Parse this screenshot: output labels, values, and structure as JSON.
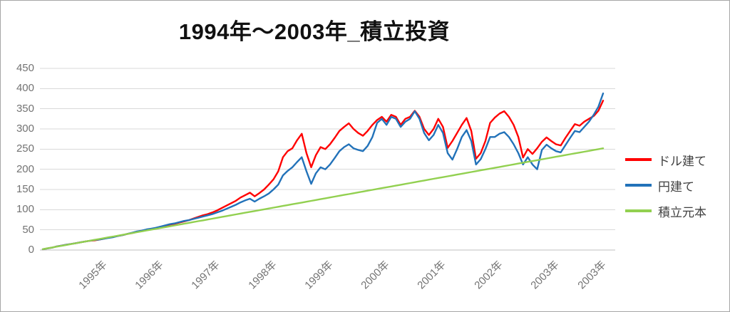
{
  "chart_data": {
    "type": "line",
    "title": "1994年～2003年_積立投資",
    "xlabel": "",
    "ylabel": "",
    "ylim": [
      0,
      450
    ],
    "y_ticks": [
      0,
      50,
      100,
      150,
      200,
      250,
      300,
      350,
      400,
      450
    ],
    "x_range": {
      "start": "1994-01",
      "end": "2003-12",
      "points": 120,
      "interval": "monthly"
    },
    "x_tick_labels": [
      "1995年",
      "1996年",
      "1997年",
      "1998年",
      "1999年",
      "2000年",
      "2001年",
      "2002年",
      "2003年",
      "2003年"
    ],
    "x_tick_months": [
      12,
      24,
      36,
      48,
      60,
      72,
      84,
      96,
      108,
      118
    ],
    "grid": true,
    "legend_position": "right",
    "colors": {
      "grid": "#d9d9d9",
      "axis": "#bfbfbf",
      "tick_text": "#737373",
      "legend_text": "#3f3f3f",
      "title_text": "#111111"
    },
    "series": [
      {
        "name": "ドル建て",
        "key": "usd",
        "color": "#ff0000",
        "values": [
          2,
          4,
          6,
          9,
          11,
          13,
          15,
          17,
          19,
          21,
          23,
          24,
          26,
          28,
          31,
          33,
          35,
          37,
          40,
          42,
          45,
          47,
          50,
          52,
          54,
          57,
          60,
          63,
          65,
          68,
          71,
          74,
          78,
          82,
          86,
          89,
          93,
          98,
          104,
          110,
          116,
          122,
          130,
          136,
          142,
          133,
          141,
          150,
          162,
          175,
          195,
          230,
          245,
          252,
          272,
          288,
          240,
          205,
          235,
          255,
          250,
          262,
          278,
          295,
          305,
          314,
          300,
          290,
          283,
          295,
          310,
          322,
          330,
          318,
          335,
          330,
          310,
          325,
          330,
          345,
          330,
          300,
          285,
          300,
          325,
          305,
          253,
          270,
          290,
          310,
          327,
          295,
          226,
          240,
          270,
          315,
          328,
          338,
          344,
          330,
          310,
          280,
          229,
          250,
          238,
          252,
          268,
          279,
          270,
          262,
          259,
          278,
          295,
          312,
          308,
          318,
          325,
          332,
          345,
          370
        ]
      },
      {
        "name": "円建て",
        "key": "jpy",
        "color": "#2272b9",
        "values": [
          2,
          4,
          6,
          9,
          11,
          13,
          15,
          17,
          19,
          21,
          23,
          25,
          26,
          28,
          30,
          32,
          35,
          37,
          40,
          43,
          46,
          48,
          51,
          53,
          55,
          58,
          61,
          64,
          66,
          69,
          72,
          74,
          77,
          80,
          83,
          86,
          89,
          93,
          97,
          102,
          107,
          112,
          118,
          123,
          127,
          120,
          127,
          133,
          140,
          150,
          162,
          185,
          196,
          205,
          218,
          230,
          195,
          164,
          190,
          205,
          200,
          212,
          228,
          245,
          255,
          262,
          252,
          248,
          245,
          258,
          280,
          315,
          325,
          310,
          330,
          325,
          305,
          318,
          325,
          344,
          325,
          290,
          272,
          285,
          310,
          290,
          240,
          224,
          250,
          280,
          297,
          270,
          212,
          225,
          250,
          280,
          280,
          288,
          292,
          280,
          262,
          240,
          212,
          230,
          212,
          200,
          248,
          261,
          252,
          245,
          242,
          260,
          278,
          295,
          292,
          305,
          318,
          335,
          355,
          388
        ]
      },
      {
        "name": "積立元本",
        "key": "principal",
        "color": "#92d050",
        "values": [
          2.1,
          4.2,
          6.3,
          8.4,
          10.5,
          12.6,
          14.7,
          16.8,
          18.9,
          21,
          23.1,
          25.2,
          27.3,
          29.4,
          31.5,
          33.6,
          35.7,
          37.8,
          39.9,
          42,
          44.1,
          46.2,
          48.3,
          50.4,
          52.5,
          54.6,
          56.7,
          58.8,
          60.9,
          63,
          65.1,
          67.2,
          69.3,
          71.4,
          73.5,
          75.6,
          77.7,
          79.8,
          81.9,
          84,
          86.1,
          88.2,
          90.3,
          92.4,
          94.5,
          96.6,
          98.7,
          100.8,
          102.9,
          105,
          107.1,
          109.2,
          111.3,
          113.4,
          115.5,
          117.6,
          119.7,
          121.8,
          123.9,
          126,
          128.1,
          130.2,
          132.3,
          134.4,
          136.5,
          138.6,
          140.7,
          142.8,
          144.9,
          147,
          149.1,
          151.2,
          153.3,
          155.4,
          157.5,
          159.6,
          161.7,
          163.8,
          165.9,
          168,
          170.1,
          172.2,
          174.3,
          176.4,
          178.5,
          180.6,
          182.7,
          184.8,
          186.9,
          189,
          191.1,
          193.2,
          195.3,
          197.4,
          199.5,
          201.6,
          203.7,
          205.8,
          207.9,
          210,
          212.1,
          214.2,
          216.3,
          218.4,
          220.5,
          222.6,
          224.7,
          226.8,
          228.9,
          231,
          233.1,
          235.2,
          237.3,
          239.4,
          241.5,
          243.6,
          245.7,
          247.8,
          249.9,
          252
        ]
      }
    ]
  }
}
